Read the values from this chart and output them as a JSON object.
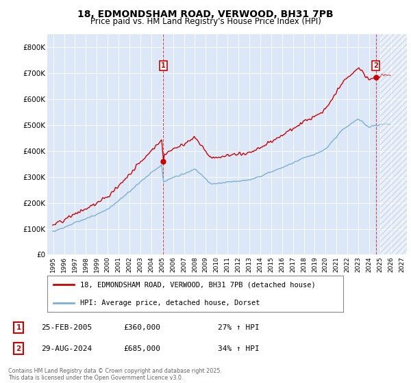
{
  "title": "18, EDMONDSHAM ROAD, VERWOOD, BH31 7PB",
  "subtitle": "Price paid vs. HM Land Registry's House Price Index (HPI)",
  "plot_bg_color": "#dce8f8",
  "red_color": "#cc0000",
  "blue_color": "#7bafd4",
  "marker1_date_num": 2005.14,
  "marker1_price": 360000,
  "marker2_date_num": 2024.66,
  "marker2_price": 685000,
  "legend_line1": "18, EDMONDSHAM ROAD, VERWOOD, BH31 7PB (detached house)",
  "legend_line2": "HPI: Average price, detached house, Dorset",
  "footer": "Contains HM Land Registry data © Crown copyright and database right 2025.\nThis data is licensed under the Open Government Licence v3.0.",
  "ylim": [
    0,
    850000
  ],
  "yticks": [
    0,
    100000,
    200000,
    300000,
    400000,
    500000,
    600000,
    700000,
    800000
  ],
  "ytick_labels": [
    "£0",
    "£100K",
    "£200K",
    "£300K",
    "£400K",
    "£500K",
    "£600K",
    "£700K",
    "£800K"
  ],
  "xtick_years": [
    1995,
    1996,
    1997,
    1998,
    1999,
    2000,
    2001,
    2002,
    2003,
    2004,
    2005,
    2006,
    2007,
    2008,
    2009,
    2010,
    2011,
    2012,
    2013,
    2014,
    2015,
    2016,
    2017,
    2018,
    2019,
    2020,
    2021,
    2022,
    2023,
    2024,
    2025,
    2026,
    2027
  ],
  "xlim_start": 1994.5,
  "xlim_end": 2027.5,
  "ann1_date": "25-FEB-2005",
  "ann1_price": "£360,000",
  "ann1_hpi": "27% ↑ HPI",
  "ann2_date": "29-AUG-2024",
  "ann2_price": "£685,000",
  "ann2_hpi": "34% ↑ HPI"
}
